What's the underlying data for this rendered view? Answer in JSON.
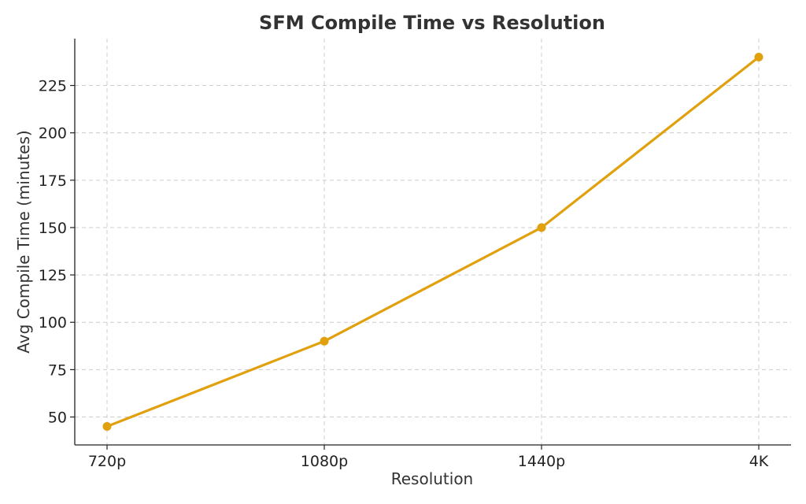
{
  "colors": {
    "line": "#E1A10E",
    "grid": "#cccccc",
    "text": "#333333",
    "background": "#ffffff"
  },
  "chart_data": {
    "type": "line",
    "title": "SFM Compile Time vs Resolution",
    "xlabel": "Resolution",
    "ylabel": "Avg Compile Time (minutes)",
    "categories": [
      "720p",
      "1080p",
      "1440p",
      "4K"
    ],
    "series": [
      {
        "values": [
          45,
          90,
          150,
          240
        ],
        "color": "#E1A10E",
        "marker": "circle"
      }
    ],
    "yticks": [
      50,
      75,
      100,
      125,
      150,
      175,
      200,
      225
    ],
    "ylim": [
      35.25,
      249.75
    ],
    "grid": true,
    "grid_style": "dashed",
    "legend": "none"
  }
}
